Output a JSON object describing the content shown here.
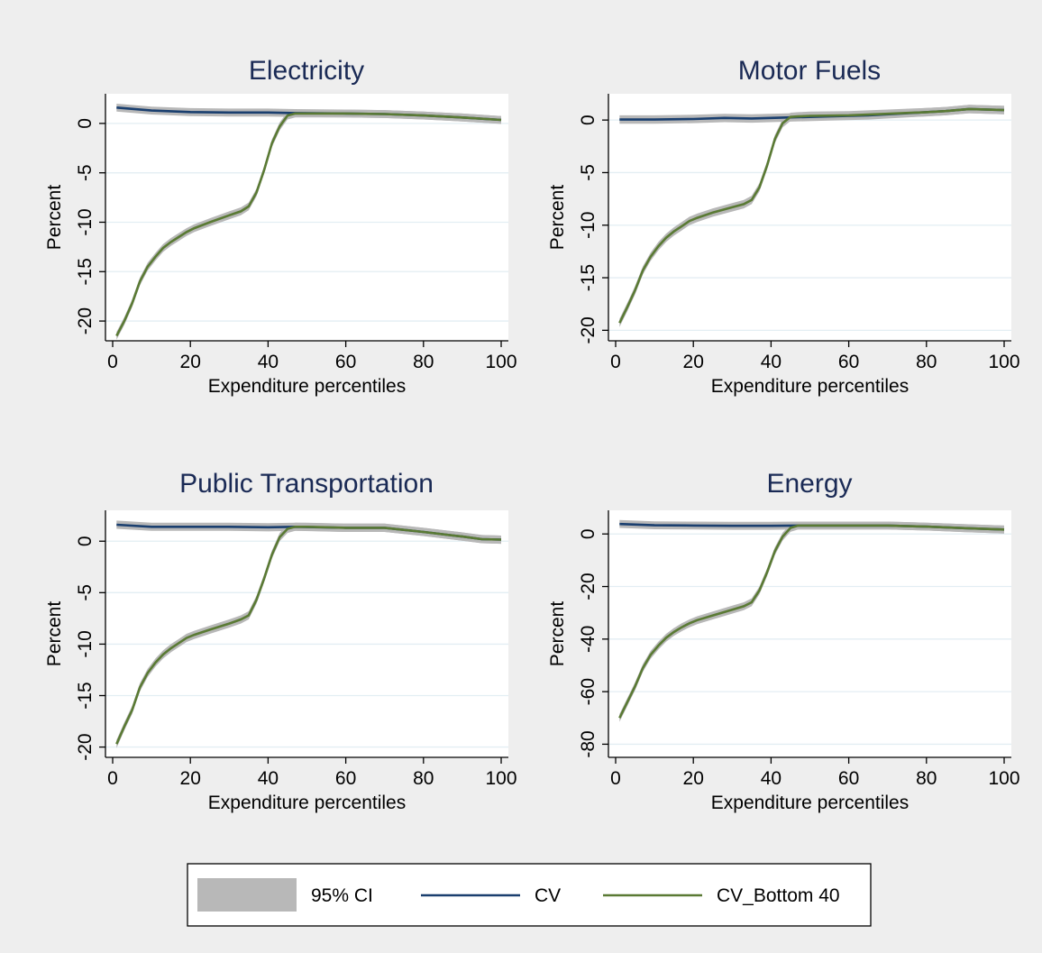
{
  "colors": {
    "ci": "#b8b8b8",
    "cv": "#1a3f6f",
    "cv_bottom40": "#5a7a34",
    "title": "#1a2a55",
    "grid": "#e3eef3",
    "background": "#eeeeee"
  },
  "chart_data": [
    {
      "type": "line",
      "title": "Electricity",
      "xlabel": "Expenditure percentiles",
      "ylabel": "Percent",
      "xlim": [
        0,
        100
      ],
      "ylim": [
        -22,
        3
      ],
      "xticks": [
        0,
        20,
        40,
        60,
        80,
        100
      ],
      "yticks": [
        0,
        -5,
        -10,
        -15,
        -20
      ],
      "grid": true,
      "series": [
        {
          "name": "CV",
          "x": [
            1,
            10,
            20,
            30,
            40,
            47,
            60,
            70,
            80,
            90,
            100
          ],
          "y": [
            1.6,
            1.3,
            1.15,
            1.1,
            1.1,
            1.05,
            1.0,
            0.95,
            0.8,
            0.6,
            0.35
          ]
        },
        {
          "name": "CV_Bottom 40",
          "x": [
            1,
            3,
            5,
            7,
            9,
            11,
            13,
            15,
            17,
            19,
            21,
            25,
            30,
            33,
            35,
            37,
            39,
            41,
            43,
            45,
            47,
            50,
            60,
            70,
            80,
            90,
            100
          ],
          "y": [
            -21.5,
            -20,
            -18.2,
            -16,
            -14.5,
            -13.5,
            -12.6,
            -12,
            -11.5,
            -11,
            -10.6,
            -10,
            -9.3,
            -8.9,
            -8.4,
            -7,
            -4.7,
            -2,
            -0.3,
            0.8,
            1.0,
            1.0,
            1.0,
            0.95,
            0.8,
            0.6,
            0.35
          ]
        }
      ],
      "ci_halfwidth": 0.4
    },
    {
      "type": "line",
      "title": "Motor Fuels",
      "xlabel": "Expenditure percentiles",
      "ylabel": "Percent",
      "xlim": [
        0,
        100
      ],
      "ylim": [
        -21,
        2.5
      ],
      "xticks": [
        0,
        20,
        40,
        60,
        80,
        100
      ],
      "yticks": [
        0,
        -5,
        -10,
        -15,
        -20
      ],
      "grid": true,
      "series": [
        {
          "name": "CV",
          "x": [
            1,
            10,
            20,
            28,
            35,
            45,
            55,
            65,
            75,
            85,
            91,
            100
          ],
          "y": [
            0.05,
            0.05,
            0.1,
            0.2,
            0.15,
            0.25,
            0.35,
            0.45,
            0.65,
            0.85,
            1.05,
            0.95
          ]
        },
        {
          "name": "CV_Bottom 40",
          "x": [
            1,
            3,
            5,
            7,
            9,
            11,
            13,
            15,
            17,
            19,
            21,
            25,
            30,
            33,
            35,
            37,
            39,
            41,
            43,
            45,
            47,
            50,
            60,
            70,
            80,
            85,
            91,
            100
          ],
          "y": [
            -19.3,
            -17.8,
            -16.2,
            -14.3,
            -13,
            -12,
            -11.2,
            -10.6,
            -10.1,
            -9.6,
            -9.3,
            -8.8,
            -8.3,
            -8,
            -7.6,
            -6.4,
            -4.3,
            -1.8,
            -0.3,
            0.3,
            0.35,
            0.4,
            0.45,
            0.6,
            0.75,
            0.85,
            1.05,
            0.95
          ]
        }
      ],
      "ci_halfwidth": 0.4
    },
    {
      "type": "line",
      "title": "Public Transportation",
      "xlabel": "Expenditure percentiles",
      "ylabel": "Percent",
      "xlim": [
        0,
        100
      ],
      "ylim": [
        -21,
        3
      ],
      "xticks": [
        0,
        20,
        40,
        60,
        80,
        100
      ],
      "yticks": [
        0,
        -5,
        -10,
        -15,
        -20
      ],
      "grid": true,
      "series": [
        {
          "name": "CV",
          "x": [
            1,
            10,
            20,
            30,
            40,
            47,
            60,
            70,
            80,
            90,
            95,
            100
          ],
          "y": [
            1.6,
            1.4,
            1.4,
            1.4,
            1.35,
            1.4,
            1.3,
            1.3,
            0.9,
            0.45,
            0.2,
            0.15
          ]
        },
        {
          "name": "CV_Bottom 40",
          "x": [
            1,
            3,
            5,
            7,
            9,
            11,
            13,
            15,
            17,
            19,
            21,
            25,
            30,
            33,
            35,
            37,
            39,
            41,
            43,
            45,
            47,
            50,
            60,
            70,
            80,
            90,
            95,
            100
          ],
          "y": [
            -19.7,
            -18,
            -16.4,
            -14.2,
            -12.8,
            -11.8,
            -11,
            -10.4,
            -9.9,
            -9.4,
            -9.1,
            -8.6,
            -8,
            -7.6,
            -7.2,
            -5.7,
            -3.6,
            -1.3,
            0.4,
            1.2,
            1.4,
            1.4,
            1.3,
            1.3,
            0.9,
            0.45,
            0.2,
            0.15
          ]
        }
      ],
      "ci_halfwidth": 0.4
    },
    {
      "type": "line",
      "title": "Energy",
      "xlabel": "Expenditure percentiles",
      "ylabel": "Percent",
      "xlim": [
        0,
        100
      ],
      "ylim": [
        -85,
        9
      ],
      "xticks": [
        0,
        20,
        40,
        60,
        80,
        100
      ],
      "yticks": [
        0,
        -20,
        -40,
        -60,
        -80
      ],
      "grid": true,
      "series": [
        {
          "name": "CV",
          "x": [
            1,
            10,
            20,
            30,
            40,
            47,
            60,
            70,
            80,
            90,
            100
          ],
          "y": [
            3.8,
            3.3,
            3.2,
            3.1,
            3.1,
            3.2,
            3.2,
            3.2,
            2.8,
            2.2,
            1.7
          ]
        },
        {
          "name": "CV_Bottom 40",
          "x": [
            1,
            3,
            5,
            7,
            9,
            11,
            13,
            15,
            17,
            19,
            21,
            25,
            30,
            33,
            35,
            37,
            39,
            41,
            43,
            45,
            47,
            50,
            60,
            70,
            80,
            90,
            100
          ],
          "y": [
            -70,
            -64,
            -58,
            -51,
            -46,
            -42.5,
            -39.5,
            -37.3,
            -35.5,
            -34,
            -32.8,
            -31,
            -28.8,
            -27.5,
            -26,
            -21.5,
            -14.5,
            -6.5,
            -1,
            2.3,
            3.2,
            3.2,
            3.2,
            3.2,
            2.8,
            2.2,
            1.7
          ]
        }
      ],
      "ci_halfwidth": 1.5
    }
  ],
  "legend": {
    "position": "bottom",
    "items": [
      {
        "label": "95% CI",
        "kind": "area"
      },
      {
        "label": "CV",
        "kind": "line"
      },
      {
        "label": "CV_Bottom 40",
        "kind": "line"
      }
    ]
  }
}
